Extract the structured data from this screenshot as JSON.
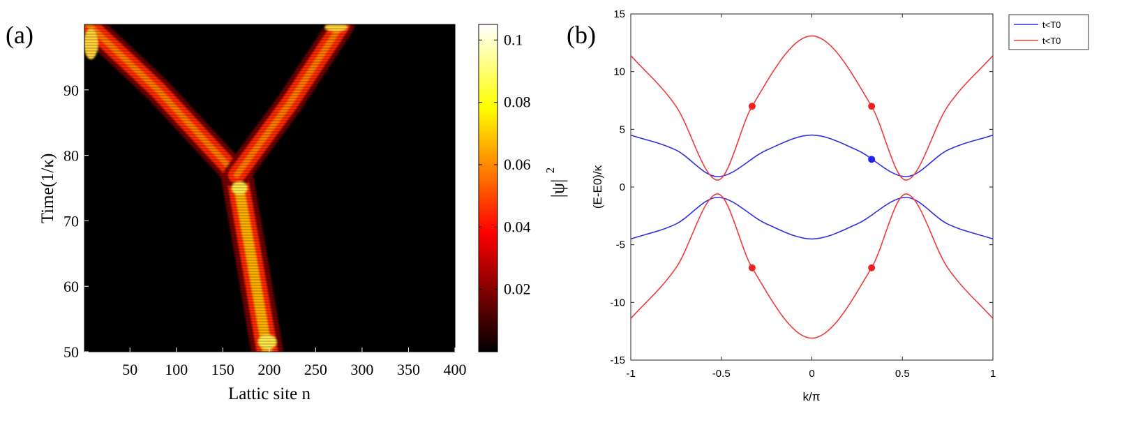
{
  "chart_data": [
    {
      "type": "heatmap",
      "panel_label": "(a)",
      "xlabel": "Lattic site n",
      "ylabel": "Time(1/κ)",
      "xlim": [
        1,
        400
      ],
      "ylim": [
        50,
        100
      ],
      "xticks": [
        50,
        100,
        150,
        200,
        250,
        300,
        350,
        400
      ],
      "yticks": [
        50,
        60,
        70,
        80,
        90
      ],
      "colorbar": {
        "label": "|ψ|",
        "label_exponent": "2",
        "ticks": [
          0.02,
          0.04,
          0.06,
          0.08,
          0.1
        ],
        "range": [
          0,
          0.105
        ],
        "colormap": "hot"
      },
      "features": [
        {
          "name": "trunk",
          "points": [
            [
              198,
              50
            ],
            [
              180,
              65
            ],
            [
              165,
              77
            ]
          ]
        },
        {
          "name": "left-branch",
          "points": [
            [
              165,
              77
            ],
            [
              80,
              90
            ],
            [
              5,
              100
            ]
          ]
        },
        {
          "name": "right-branch",
          "points": [
            [
              165,
              77
            ],
            [
              222,
              88
            ],
            [
              278,
              100
            ]
          ]
        }
      ]
    },
    {
      "type": "line",
      "panel_label": "(b)",
      "xlabel": "k/π",
      "ylabel": "(E-E0)/κ",
      "xlim": [
        -1,
        1
      ],
      "ylim": [
        -15,
        15
      ],
      "xticks": [
        -1,
        -0.5,
        0,
        0.5,
        1
      ],
      "yticks": [
        -15,
        -10,
        -5,
        0,
        5,
        10,
        15
      ],
      "legend": {
        "position": "outside-top-right",
        "entries": [
          {
            "label": "t<T0",
            "color": "#2f2fe0"
          },
          {
            "label": "t<T0",
            "color": "#ee3b3b"
          }
        ]
      },
      "series": [
        {
          "label": "t<T0",
          "color": "#2f2fe0",
          "x": [
            -1,
            -0.75,
            -0.52,
            -0.25,
            0,
            0.25,
            0.52,
            0.75,
            1
          ],
          "y": [
            4.5,
            3.2,
            0.9,
            3.2,
            4.5,
            3.2,
            0.9,
            3.2,
            4.5
          ]
        },
        {
          "label": "t<T0",
          "color": "#2f2fe0",
          "x": [
            -1,
            -0.75,
            -0.52,
            -0.25,
            0,
            0.25,
            0.52,
            0.75,
            1
          ],
          "y": [
            -4.5,
            -3.2,
            -0.9,
            -3.2,
            -4.5,
            -3.2,
            -0.9,
            -3.2,
            -4.5
          ]
        },
        {
          "label": "t<T0",
          "color": "#ee3b3b",
          "x": [
            -1,
            -0.75,
            -0.52,
            -0.33,
            0,
            0.33,
            0.52,
            0.75,
            1
          ],
          "y": [
            11.4,
            7.0,
            0.6,
            7.0,
            13.1,
            7.0,
            0.6,
            7.0,
            11.4
          ]
        },
        {
          "label": "t<T0",
          "color": "#ee3b3b",
          "x": [
            -1,
            -0.75,
            -0.52,
            -0.33,
            0,
            0.33,
            0.52,
            0.75,
            1
          ],
          "y": [
            -11.4,
            -7.0,
            -0.6,
            -7.0,
            -13.1,
            -7.0,
            -0.6,
            -7.0,
            -11.4
          ]
        }
      ],
      "markers": [
        {
          "x": -0.33,
          "y": 7.0,
          "color": "#ee2222"
        },
        {
          "x": 0.33,
          "y": 7.0,
          "color": "#ee2222"
        },
        {
          "x": -0.33,
          "y": -7.0,
          "color": "#ee2222"
        },
        {
          "x": 0.33,
          "y": -7.0,
          "color": "#ee2222"
        },
        {
          "x": 0.33,
          "y": 2.4,
          "color": "#2222ee"
        }
      ]
    }
  ]
}
